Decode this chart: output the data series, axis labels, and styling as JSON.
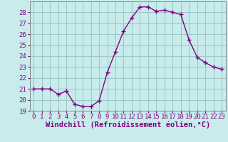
{
  "x": [
    0,
    1,
    2,
    3,
    4,
    5,
    6,
    7,
    8,
    9,
    10,
    11,
    12,
    13,
    14,
    15,
    16,
    17,
    18,
    19,
    20,
    21,
    22,
    23
  ],
  "y": [
    21.0,
    21.0,
    21.0,
    20.5,
    20.8,
    19.6,
    19.4,
    19.4,
    19.9,
    22.5,
    24.4,
    26.3,
    27.5,
    28.5,
    28.5,
    28.1,
    28.2,
    28.0,
    27.8,
    25.5,
    23.9,
    23.4,
    23.0,
    22.8
  ],
  "line_color": "#800080",
  "marker": "+",
  "marker_size": 4,
  "bg_color": "#c8ecec",
  "grid_color": "#a0c8c8",
  "xlabel": "Windchill (Refroidissement éolien,°C)",
  "xlabel_fontsize": 7.5,
  "ylim": [
    19,
    29
  ],
  "xlim": [
    -0.5,
    23.5
  ],
  "yticks": [
    19,
    20,
    21,
    22,
    23,
    24,
    25,
    26,
    27,
    28
  ],
  "xticks": [
    0,
    1,
    2,
    3,
    4,
    5,
    6,
    7,
    8,
    9,
    10,
    11,
    12,
    13,
    14,
    15,
    16,
    17,
    18,
    19,
    20,
    21,
    22,
    23
  ],
  "tick_fontsize": 6.5,
  "line_width": 1.0,
  "text_color": "#800080"
}
